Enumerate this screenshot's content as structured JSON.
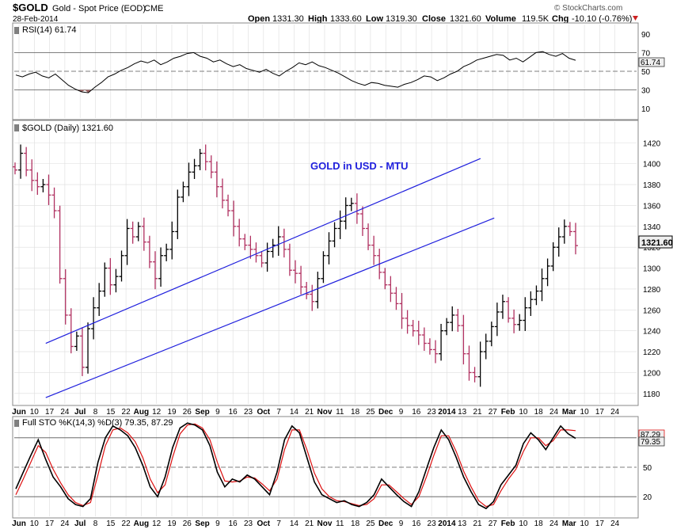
{
  "header": {
    "symbol": "$GOLD",
    "name": "Gold - Spot Price (EOD)",
    "exchange": "CME",
    "date": "28-Feb-2014",
    "copyright": "© StockCharts.com",
    "open_label": "Open",
    "open": "1331.30",
    "high_label": "High",
    "high": "1333.60",
    "low_label": "Low",
    "low": "1319.30",
    "close_label": "Close",
    "close": "1321.60",
    "volume_label": "Volume",
    "volume": "119.5K",
    "chg_label": "Chg",
    "chg": "-10.10 (-0.76%)"
  },
  "colors": {
    "panel_border": "#888888",
    "grid": "#dddddd",
    "up_bar": "#000000",
    "down_bar": "#b03060",
    "channel": "#1f1fdd",
    "annotation": "#1f1fdd",
    "stoch_k": "#000000",
    "stoch_d": "#dd1111",
    "rsi_fill": "#a06060",
    "last_tag_bg": "#eeeeee",
    "chg_arrow": "#cc2222"
  },
  "chart_data": [
    {
      "type": "line",
      "title": "RSI(14) 61.74",
      "indicator": "RSI",
      "period": 14,
      "last_value": "61.74",
      "ylim": [
        0,
        100
      ],
      "ticks": [
        "90",
        "70",
        "50",
        "30",
        "10"
      ],
      "reference_lines": [
        70,
        50,
        30
      ],
      "values": [
        46,
        44,
        47,
        49,
        45,
        43,
        47,
        41,
        35,
        31,
        28,
        27,
        33,
        38,
        44,
        47,
        51,
        54,
        58,
        61,
        59,
        62,
        57,
        60,
        64,
        66,
        69,
        70,
        66,
        64,
        60,
        62,
        58,
        55,
        57,
        53,
        51,
        49,
        52,
        48,
        45,
        50,
        54,
        59,
        57,
        60,
        56,
        54,
        51,
        48,
        44,
        40,
        37,
        35,
        38,
        37,
        35,
        34,
        33,
        36,
        38,
        41,
        45,
        44,
        40,
        43,
        47,
        50,
        55,
        58,
        62,
        64,
        66,
        68,
        67,
        62,
        64,
        60,
        65,
        70,
        71,
        68,
        66,
        69,
        64,
        61.74
      ]
    },
    {
      "type": "ohlc",
      "title": "$GOLD (Daily) 1321.60",
      "annotation": "GOLD in USD - MTU",
      "last_value": "1321.60",
      "ylim": [
        1170,
        1440
      ],
      "yticks": [
        "1420",
        "1400",
        "1380",
        "1360",
        "1340",
        "1320",
        "1300",
        "1280",
        "1260",
        "1240",
        "1220",
        "1200",
        "1180"
      ],
      "xlabels": [
        "Jun",
        "10",
        "17",
        "24",
        "Jul",
        "8",
        "15",
        "22",
        "Aug",
        "12",
        "19",
        "26",
        "Sep",
        "9",
        "16",
        "23",
        "Oct",
        "7",
        "14",
        "21",
        "Nov",
        "11",
        "18",
        "25",
        "Dec",
        "9",
        "16",
        "23",
        "2014",
        "13",
        "21",
        "27",
        "Feb",
        "10",
        "18",
        "24",
        "Mar",
        "10",
        "17",
        "24"
      ],
      "close_path": [
        1394,
        1410,
        1394,
        1384,
        1378,
        1380,
        1370,
        1355,
        1290,
        1255,
        1225,
        1235,
        1205,
        1242,
        1262,
        1278,
        1300,
        1284,
        1292,
        1312,
        1338,
        1330,
        1340,
        1325,
        1306,
        1290,
        1312,
        1318,
        1335,
        1368,
        1378,
        1392,
        1398,
        1410,
        1402,
        1392,
        1378,
        1365,
        1355,
        1340,
        1328,
        1322,
        1318,
        1312,
        1305,
        1316,
        1322,
        1330,
        1318,
        1298,
        1295,
        1282,
        1275,
        1268,
        1290,
        1312,
        1326,
        1338,
        1345,
        1360,
        1362,
        1352,
        1338,
        1322,
        1312,
        1296,
        1284,
        1276,
        1266,
        1252,
        1245,
        1240,
        1236,
        1228,
        1222,
        1218,
        1240,
        1248,
        1255,
        1245,
        1218,
        1200,
        1196,
        1220,
        1230,
        1244,
        1258,
        1268,
        1252,
        1246,
        1250,
        1262,
        1270,
        1278,
        1290,
        1302,
        1320,
        1330,
        1340,
        1335,
        1321.6
      ],
      "channel": {
        "upper": [
          [
            1.75,
            1228
          ],
          [
            30.2,
            1405
          ]
        ],
        "lower": [
          [
            1.75,
            1176
          ],
          [
            31.1,
            1348
          ]
        ]
      }
    },
    {
      "type": "line",
      "title": "Full STO %K(14,3) %D(3) 79.35, 87.29",
      "indicator": "Full Stochastic",
      "k_last": "79.35",
      "d_last": "87.29",
      "ylim": [
        0,
        100
      ],
      "ticks": [
        "50",
        "20"
      ],
      "reference_lines": [
        80,
        50,
        20
      ],
      "k_values": [
        28,
        45,
        62,
        78,
        58,
        40,
        30,
        18,
        12,
        10,
        18,
        55,
        80,
        92,
        88,
        82,
        70,
        52,
        30,
        20,
        40,
        70,
        90,
        95,
        93,
        88,
        72,
        45,
        30,
        38,
        35,
        42,
        38,
        30,
        22,
        45,
        78,
        92,
        85,
        60,
        35,
        22,
        18,
        14,
        16,
        12,
        10,
        14,
        22,
        38,
        30,
        22,
        15,
        10,
        25,
        48,
        70,
        88,
        78,
        60,
        40,
        25,
        12,
        8,
        15,
        32,
        42,
        52,
        74,
        85,
        78,
        68,
        80,
        92,
        84,
        79.35
      ],
      "d_values": [
        22,
        38,
        55,
        72,
        65,
        48,
        34,
        22,
        14,
        11,
        14,
        42,
        72,
        88,
        90,
        85,
        76,
        60,
        38,
        24,
        32,
        60,
        84,
        93,
        94,
        90,
        78,
        55,
        36,
        35,
        36,
        40,
        39,
        33,
        26,
        38,
        68,
        88,
        88,
        68,
        44,
        28,
        20,
        16,
        15,
        13,
        11,
        12,
        18,
        32,
        32,
        25,
        18,
        12,
        20,
        40,
        62,
        82,
        82,
        66,
        46,
        30,
        16,
        10,
        12,
        26,
        38,
        48,
        66,
        80,
        80,
        72,
        77,
        88,
        88,
        87.29
      ],
      "xlabels": [
        "Jun",
        "10",
        "17",
        "24",
        "Jul",
        "8",
        "15",
        "22",
        "Aug",
        "12",
        "19",
        "26",
        "Sep",
        "9",
        "16",
        "23",
        "Oct",
        "7",
        "14",
        "21",
        "Nov",
        "11",
        "18",
        "25",
        "Dec",
        "9",
        "16",
        "23",
        "2014",
        "13",
        "21",
        "27",
        "Feb",
        "10",
        "18",
        "24",
        "Mar",
        "10",
        "17",
        "24"
      ]
    }
  ]
}
